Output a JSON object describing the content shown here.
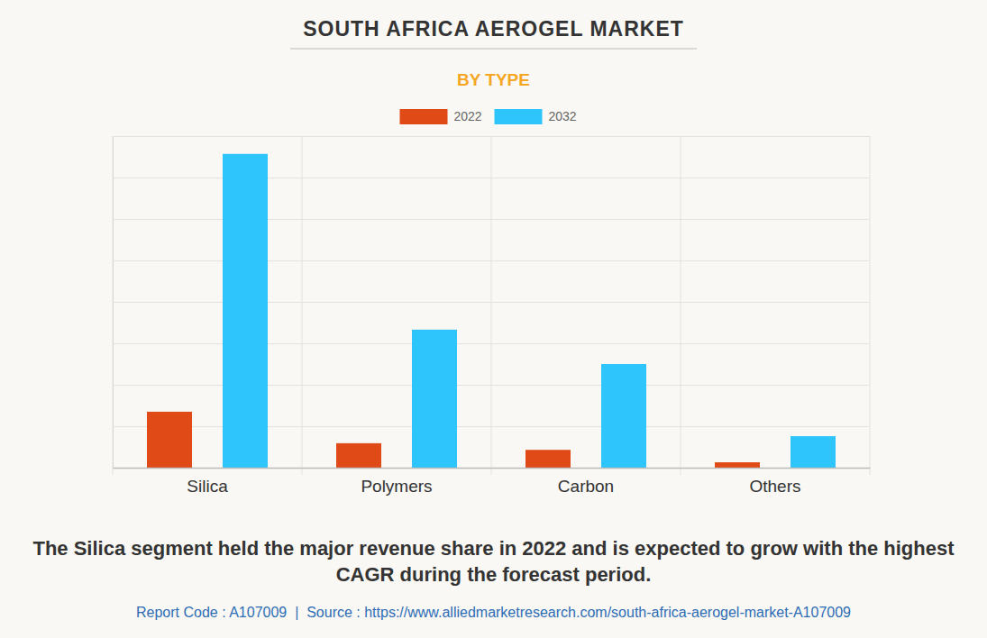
{
  "chart_data": {
    "type": "bar",
    "title": "SOUTH AFRICA AEROGEL MARKET",
    "subtitle": "BY TYPE",
    "annotations": [
      "The Silica segment held the major revenue share in 2022 and is expected to grow with the highest CAGR during the forecast period.",
      "Report Code : A107009  |  Source : https://www.alliedmarketresearch.com/south-africa-aerogel-market-A107009"
    ],
    "categories": [
      "Silica",
      "Polymers",
      "Carbon",
      "Others"
    ],
    "series": [
      {
        "name": "2022",
        "color": "#e04a17",
        "values": [
          1.35,
          0.59,
          0.43,
          0.13
        ]
      },
      {
        "name": "2032",
        "color": "#2ec4fc",
        "values": [
          7.57,
          3.33,
          2.5,
          0.76
        ]
      }
    ],
    "ylim": [
      0,
      8
    ],
    "yticks": [
      0,
      1,
      2,
      3,
      4,
      5,
      6,
      7,
      8
    ],
    "grid": true,
    "legend": "top",
    "tick_labels": "x"
  }
}
